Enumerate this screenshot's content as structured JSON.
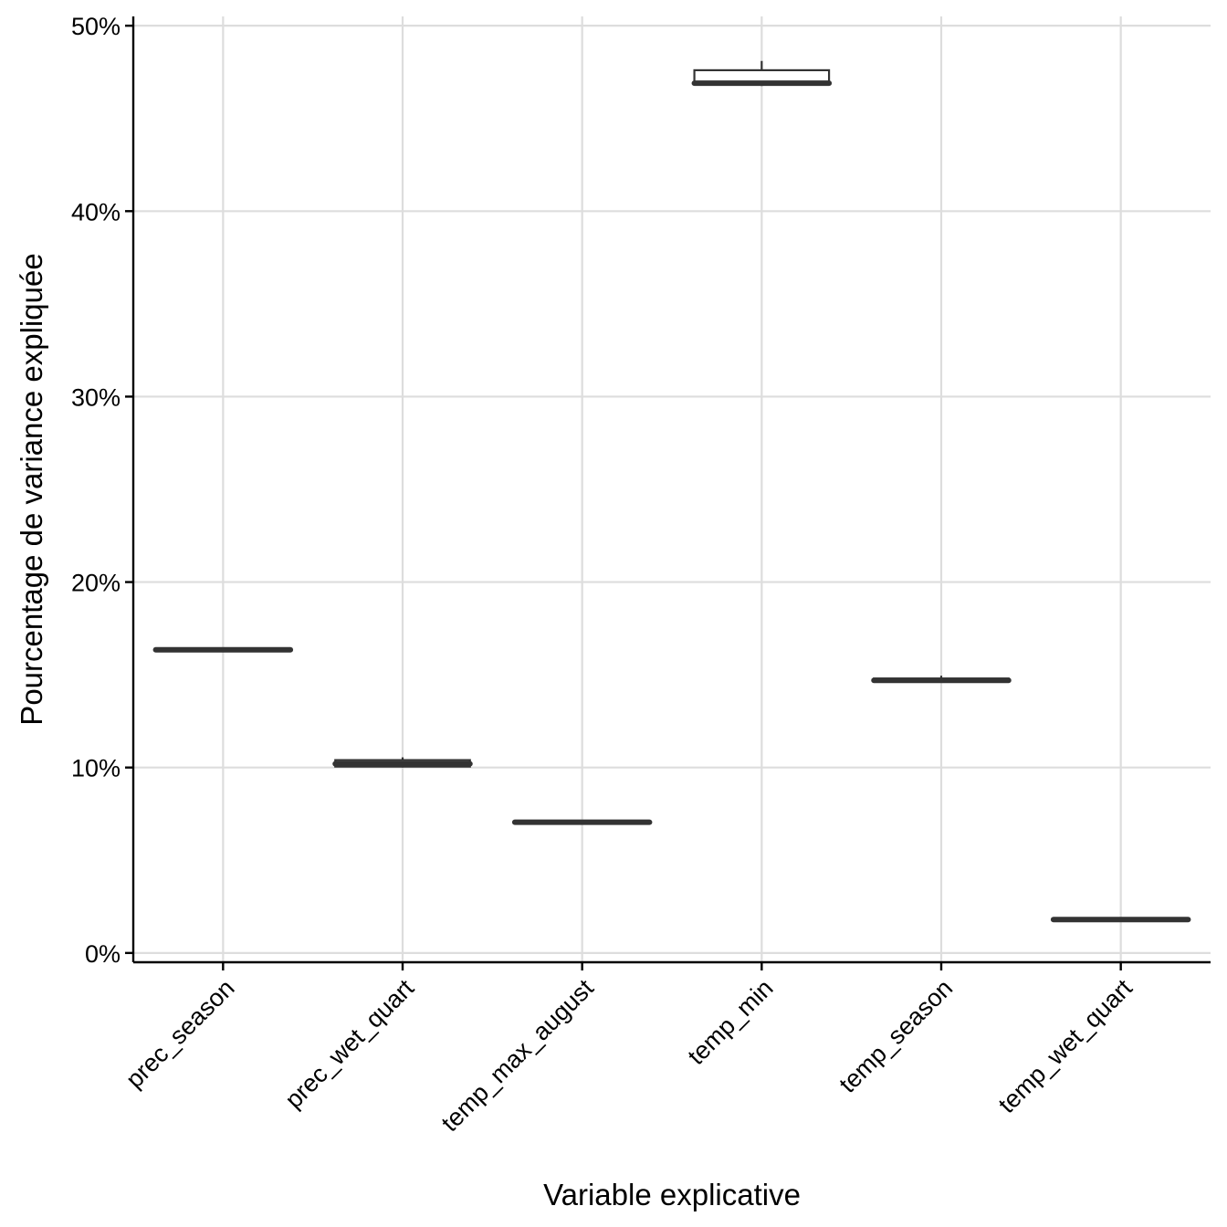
{
  "chart_data": {
    "type": "boxplot",
    "xlabel": "Variable explicative",
    "ylabel": "Pourcentage de variance expliquée",
    "ylim": [
      -0.5,
      50.5
    ],
    "yticks": [
      0,
      10,
      20,
      30,
      40,
      50
    ],
    "ytick_labels": [
      "0%",
      "10%",
      "20%",
      "30%",
      "40%",
      "50%"
    ],
    "grid": true,
    "legend": "none",
    "categories": [
      "prec_season",
      "prec_wet_quart",
      "temp_max_august",
      "temp_min",
      "temp_season",
      "temp_wet_quart"
    ],
    "boxes": [
      {
        "category": "prec_season",
        "min": 16.3,
        "q1": 16.3,
        "median": 16.35,
        "q3": 16.4,
        "max": 16.45
      },
      {
        "category": "prec_wet_quart",
        "min": 10.0,
        "q1": 10.05,
        "median": 10.2,
        "q3": 10.4,
        "max": 10.55
      },
      {
        "category": "temp_max_august",
        "min": 7.0,
        "q1": 7.0,
        "median": 7.05,
        "q3": 7.05,
        "max": 7.1
      },
      {
        "category": "temp_min",
        "min": 46.75,
        "q1": 46.85,
        "median": 46.9,
        "q3": 47.6,
        "max": 48.1
      },
      {
        "category": "temp_season",
        "min": 14.6,
        "q1": 14.65,
        "median": 14.7,
        "q3": 14.8,
        "max": 14.95
      },
      {
        "category": "temp_wet_quart",
        "min": 1.8,
        "q1": 1.8,
        "median": 1.8,
        "q3": 1.85,
        "max": 1.85
      }
    ],
    "colors": {
      "box_line": "#333333",
      "box_fill": "#ffffff",
      "grid": "#dddddd",
      "axis": "#000000"
    }
  }
}
